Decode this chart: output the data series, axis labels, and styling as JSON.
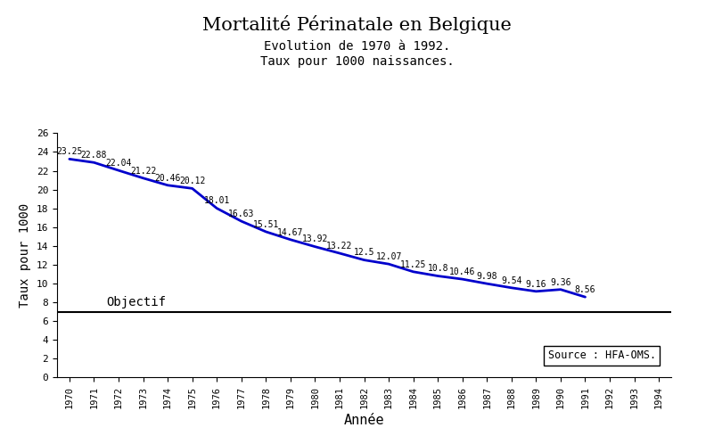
{
  "title": "Mortalité Périnatale en Belgique",
  "subtitle1": "Evolution de 1970 à 1992.",
  "subtitle2": "Taux pour 1000 naissances.",
  "xlabel": "Année",
  "ylabel": "Taux pour 1000",
  "years": [
    1970,
    1971,
    1972,
    1973,
    1974,
    1975,
    1976,
    1977,
    1978,
    1979,
    1980,
    1981,
    1982,
    1983,
    1984,
    1985,
    1986,
    1987,
    1988,
    1989,
    1990,
    1991,
    1992,
    1993,
    1994
  ],
  "values": [
    23.25,
    22.88,
    22.04,
    21.22,
    20.46,
    20.12,
    18.01,
    16.63,
    15.51,
    14.67,
    13.92,
    13.22,
    12.5,
    12.07,
    11.25,
    10.8,
    10.46,
    9.98,
    9.54,
    9.16,
    9.36,
    8.56,
    null,
    null,
    null
  ],
  "line_color": "#0000cc",
  "objective_y": 7.0,
  "objectif_label": "Objectif",
  "source_label": "Source : HFA-OMS.",
  "ylim": [
    0,
    26
  ],
  "xlim": [
    1969.5,
    1994.5
  ],
  "yticks": [
    0,
    2,
    4,
    6,
    8,
    10,
    12,
    14,
    16,
    18,
    20,
    22,
    24,
    26
  ],
  "xticks": [
    1970,
    1971,
    1972,
    1973,
    1974,
    1975,
    1976,
    1977,
    1978,
    1979,
    1980,
    1981,
    1982,
    1983,
    1984,
    1985,
    1986,
    1987,
    1988,
    1989,
    1990,
    1991,
    1992,
    1993,
    1994
  ],
  "bg_color": "#ffffff",
  "title_fontsize": 15,
  "subtitle_fontsize": 10,
  "label_fontsize": 10,
  "annotation_fontsize": 7,
  "tick_fontsize": 7.5
}
